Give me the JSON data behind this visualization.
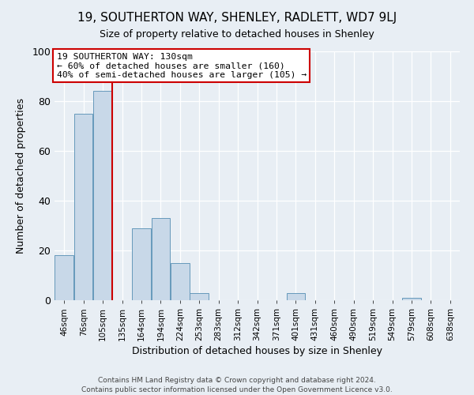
{
  "title": "19, SOUTHERTON WAY, SHENLEY, RADLETT, WD7 9LJ",
  "subtitle": "Size of property relative to detached houses in Shenley",
  "xlabel": "Distribution of detached houses by size in Shenley",
  "ylabel": "Number of detached properties",
  "bar_labels": [
    "46sqm",
    "76sqm",
    "105sqm",
    "135sqm",
    "164sqm",
    "194sqm",
    "224sqm",
    "253sqm",
    "283sqm",
    "312sqm",
    "342sqm",
    "371sqm",
    "401sqm",
    "431sqm",
    "460sqm",
    "490sqm",
    "519sqm",
    "549sqm",
    "579sqm",
    "608sqm",
    "638sqm"
  ],
  "bar_heights": [
    18,
    75,
    84,
    0,
    29,
    33,
    15,
    3,
    0,
    0,
    0,
    0,
    3,
    0,
    0,
    0,
    0,
    0,
    1,
    0,
    0
  ],
  "bar_color": "#c8d8e8",
  "bar_edge_color": "#6699bb",
  "bar_width": 0.97,
  "vline_x": 2.5,
  "vline_color": "#cc0000",
  "annotation_text": "19 SOUTHERTON WAY: 130sqm\n← 60% of detached houses are smaller (160)\n40% of semi-detached houses are larger (105) →",
  "annotation_box_color": "#ffffff",
  "annotation_box_edge": "#cc0000",
  "ylim": [
    0,
    100
  ],
  "yticks": [
    0,
    20,
    40,
    60,
    80,
    100
  ],
  "bg_color": "#e8eef4",
  "grid_color": "#ffffff",
  "footer_line1": "Contains HM Land Registry data © Crown copyright and database right 2024.",
  "footer_line2": "Contains public sector information licensed under the Open Government Licence v3.0.",
  "title_fontsize": 11,
  "subtitle_fontsize": 9,
  "xlabel_fontsize": 9,
  "ylabel_fontsize": 9,
  "tick_fontsize": 7.5,
  "annotation_fontsize": 8.2,
  "footer_fontsize": 6.5
}
